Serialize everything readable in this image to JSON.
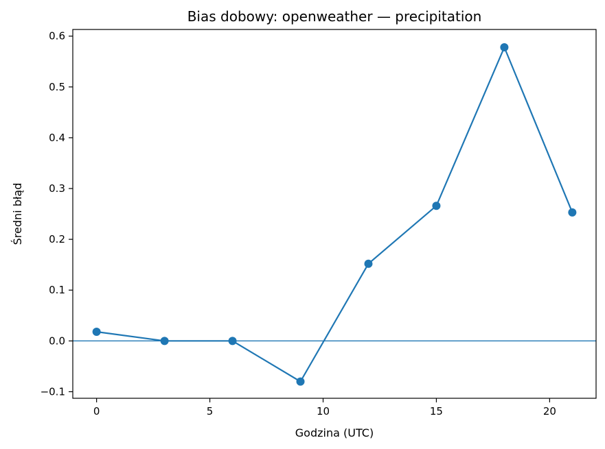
{
  "chart_data": {
    "type": "line",
    "title": "Bias dobowy: openweather — precipitation",
    "xlabel": "Godzina (UTC)",
    "ylabel": "Średni błąd",
    "xlim": [
      -1.05,
      22.05
    ],
    "ylim": [
      -0.1129,
      0.6131
    ],
    "xticks": [
      0,
      5,
      10,
      15,
      20
    ],
    "xtick_labels": [
      "0",
      "5",
      "10",
      "15",
      "20"
    ],
    "yticks": [
      -0.1,
      0.0,
      0.1,
      0.2,
      0.3,
      0.4,
      0.5,
      0.6
    ],
    "ytick_labels": [
      "−0.1",
      "0.0",
      "0.1",
      "0.2",
      "0.3",
      "0.4",
      "0.5",
      "0.6"
    ],
    "grid": false,
    "reference_line": {
      "y": 0.0
    },
    "colors": {
      "series": "#1f77b4",
      "axes": "#000000"
    },
    "series": [
      {
        "x": [
          0,
          3,
          6,
          9,
          12,
          15,
          18,
          21
        ],
        "y": [
          0.018,
          0.0,
          0.0,
          -0.08,
          0.152,
          0.266,
          0.578,
          0.253
        ]
      }
    ]
  }
}
